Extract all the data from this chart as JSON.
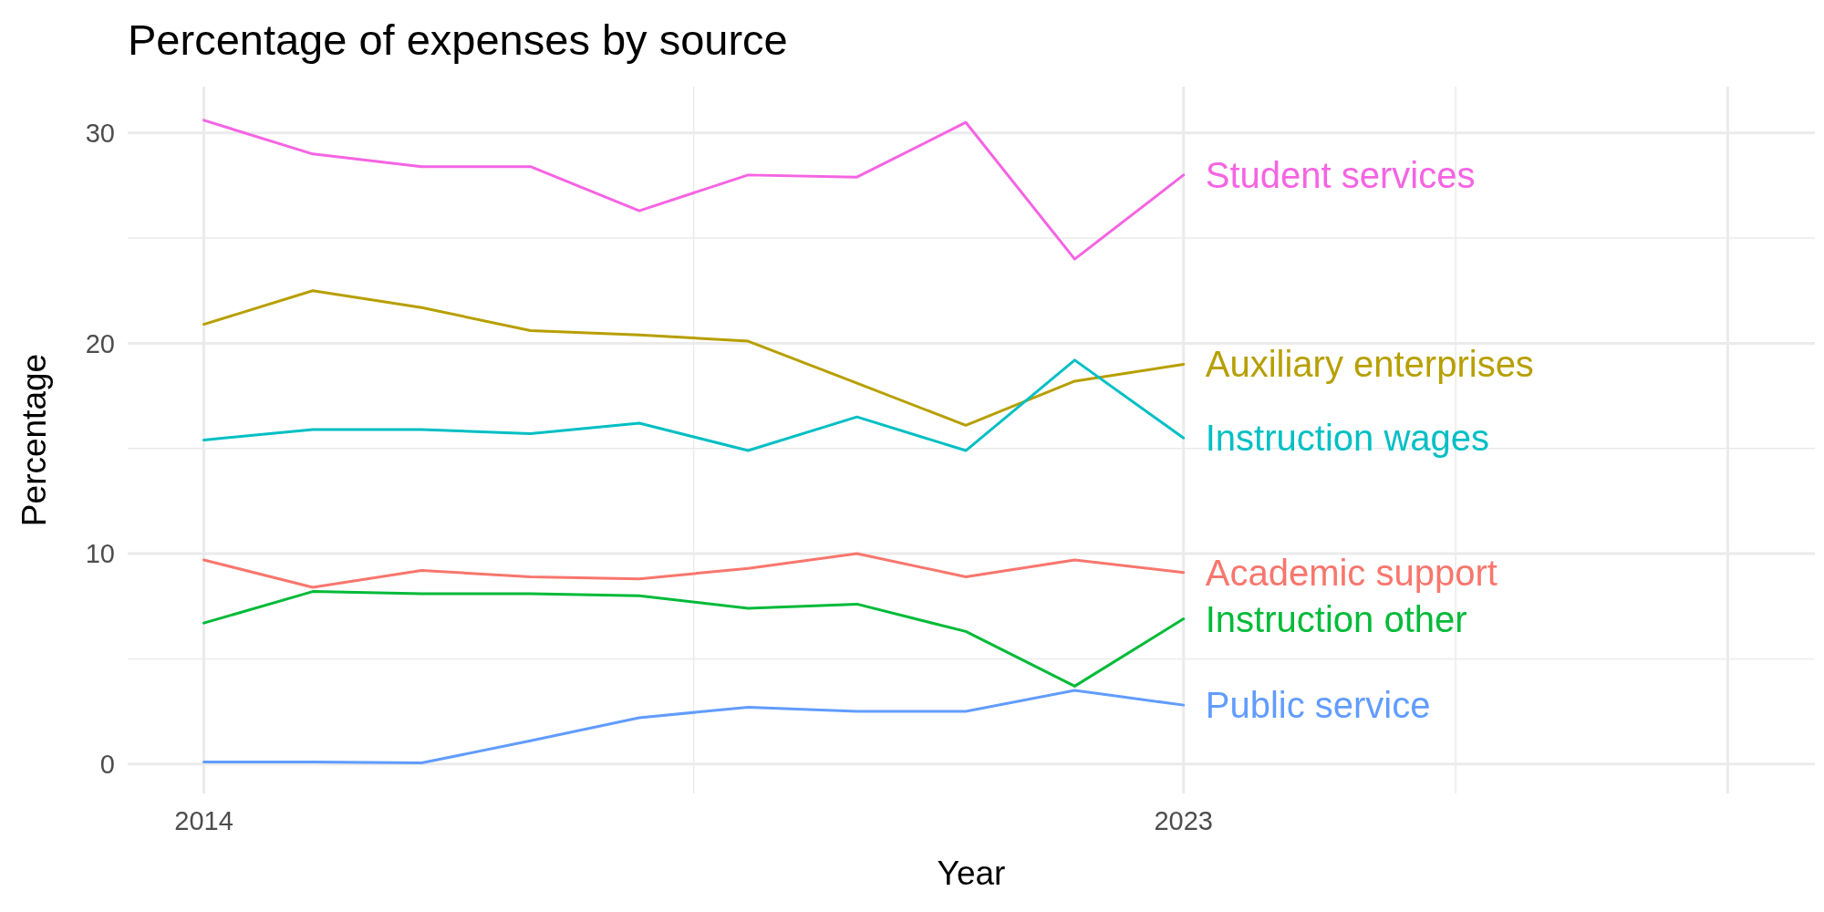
{
  "chart_data": {
    "type": "line",
    "title": "Percentage of expenses by source",
    "xlabel": "Year",
    "ylabel": "Percentage",
    "x": [
      2014,
      2015,
      2016,
      2017,
      2018,
      2019,
      2020,
      2021,
      2022,
      2023
    ],
    "xlim": [
      2013.3,
      2028.8
    ],
    "xticks": [
      2014,
      2023,
      {
        "value": 2028,
        "label": null
      }
    ],
    "ylim": [
      -1.4,
      32.2
    ],
    "yticks": [
      0,
      10,
      20,
      30
    ],
    "grid": true,
    "legend": false,
    "line_style": "solid",
    "marker": "none",
    "series": [
      {
        "name": "Student services",
        "color": "#f564e3",
        "values": [
          30.6,
          29.0,
          28.4,
          28.4,
          26.3,
          28.0,
          27.9,
          30.5,
          24.0,
          28.0
        ]
      },
      {
        "name": "Auxiliary enterprises",
        "color": "#b79f00",
        "values": [
          20.9,
          22.5,
          21.7,
          20.6,
          20.4,
          20.1,
          18.1,
          16.1,
          18.2,
          19.0
        ]
      },
      {
        "name": "Instruction wages",
        "color": "#00bfc4",
        "values": [
          15.4,
          15.9,
          15.9,
          15.7,
          16.2,
          14.9,
          16.5,
          14.9,
          19.2,
          15.5
        ]
      },
      {
        "name": "Academic support",
        "color": "#f8766d",
        "values": [
          9.7,
          8.4,
          9.2,
          8.9,
          8.8,
          9.3,
          10.0,
          8.9,
          9.7,
          9.1
        ]
      },
      {
        "name": "Instruction other",
        "color": "#00ba38",
        "values": [
          6.7,
          8.2,
          8.1,
          8.1,
          8.0,
          7.4,
          7.6,
          6.3,
          3.7,
          6.9
        ]
      },
      {
        "name": "Public service",
        "color": "#619cff",
        "values": [
          0.1,
          0.1,
          0.05,
          1.1,
          2.2,
          2.7,
          2.5,
          2.5,
          3.5,
          2.8
        ]
      }
    ]
  }
}
